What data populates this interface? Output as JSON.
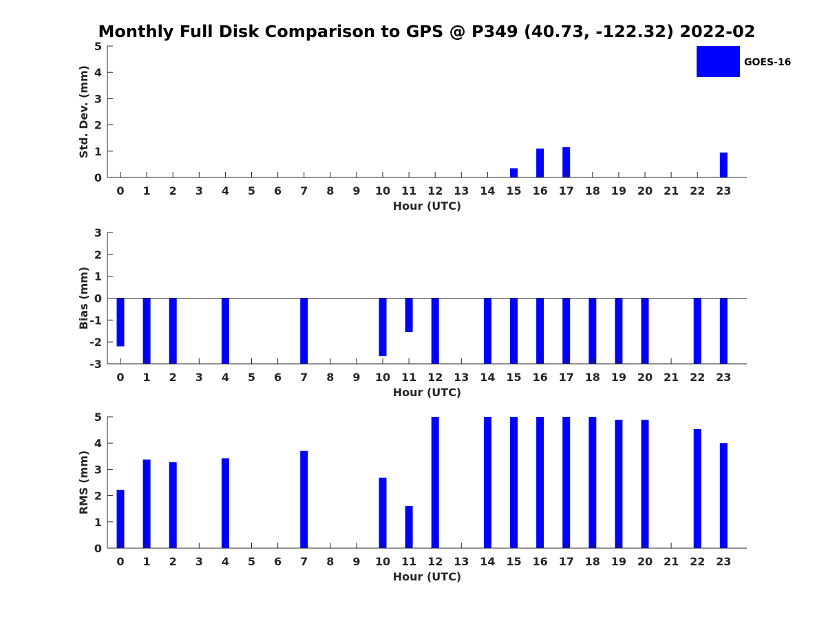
{
  "title": "Monthly Full Disk Comparison to GPS @ P349 (40.73, -122.32) 2022-02",
  "legend": {
    "label": "GOES-16",
    "color": "#0000ff",
    "position": "top-right"
  },
  "chart_data": [
    {
      "type": "bar",
      "xlabel": "Hour (UTC)",
      "ylabel": "Std. Dev. (mm)",
      "ylim": [
        0,
        5
      ],
      "yticks": [
        0,
        1,
        2,
        3,
        4,
        5
      ],
      "categories": [
        0,
        1,
        2,
        3,
        4,
        5,
        6,
        7,
        8,
        9,
        10,
        11,
        12,
        13,
        14,
        15,
        16,
        17,
        18,
        19,
        20,
        21,
        22,
        23
      ],
      "series": [
        {
          "name": "GOES-16",
          "color": "#0000ff",
          "values": [
            null,
            null,
            null,
            null,
            null,
            null,
            null,
            null,
            null,
            null,
            null,
            null,
            null,
            null,
            null,
            0.35,
            1.1,
            1.15,
            null,
            null,
            null,
            null,
            null,
            0.95
          ]
        }
      ],
      "grid": false
    },
    {
      "type": "bar",
      "xlabel": "Hour (UTC)",
      "ylabel": "Bias (mm)",
      "ylim": [
        -3,
        3
      ],
      "yticks": [
        -3,
        -2,
        -1,
        0,
        1,
        2,
        3
      ],
      "categories": [
        0,
        1,
        2,
        3,
        4,
        5,
        6,
        7,
        8,
        9,
        10,
        11,
        12,
        13,
        14,
        15,
        16,
        17,
        18,
        19,
        20,
        21,
        22,
        23
      ],
      "series": [
        {
          "name": "GOES-16",
          "color": "#0000ff",
          "values": [
            -2.2,
            -3,
            -3,
            null,
            -3,
            null,
            null,
            -3,
            null,
            null,
            -2.65,
            -1.55,
            -3,
            null,
            -3,
            -3,
            -3,
            -3,
            -3,
            -3,
            -3,
            null,
            -3,
            -3
          ]
        }
      ],
      "grid": false
    },
    {
      "type": "bar",
      "xlabel": "Hour (UTC)",
      "ylabel": "RMS (mm)",
      "ylim": [
        0,
        5
      ],
      "yticks": [
        0,
        1,
        2,
        3,
        4,
        5
      ],
      "categories": [
        0,
        1,
        2,
        3,
        4,
        5,
        6,
        7,
        8,
        9,
        10,
        11,
        12,
        13,
        14,
        15,
        16,
        17,
        18,
        19,
        20,
        21,
        22,
        23
      ],
      "series": [
        {
          "name": "GOES-16",
          "color": "#0000ff",
          "values": [
            2.22,
            3.37,
            3.27,
            null,
            3.42,
            null,
            null,
            3.7,
            null,
            null,
            2.68,
            1.6,
            5,
            null,
            5,
            5,
            5,
            5,
            5,
            4.88,
            4.88,
            null,
            4.53,
            4.0
          ]
        }
      ],
      "grid": false
    }
  ]
}
